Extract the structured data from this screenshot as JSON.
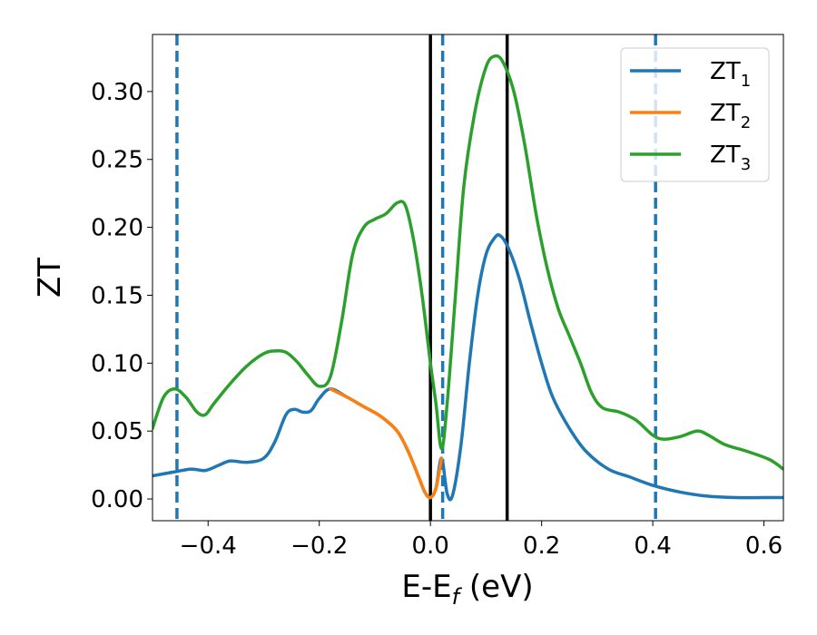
{
  "chart_data": {
    "type": "line",
    "xlabel": {
      "main": "E-E",
      "sub": "f",
      "unit": " (eV)"
    },
    "ylabel": "ZT",
    "xlim": [
      -0.5,
      0.635
    ],
    "ylim": [
      -0.016,
      0.342
    ],
    "xticks": [
      {
        "value": -0.4,
        "label": "−0.4"
      },
      {
        "value": -0.2,
        "label": "−0.2"
      },
      {
        "value": 0.0,
        "label": "0.0"
      },
      {
        "value": 0.2,
        "label": "0.2"
      },
      {
        "value": 0.4,
        "label": "0.4"
      },
      {
        "value": 0.6,
        "label": "0.6"
      }
    ],
    "yticks": [
      {
        "value": 0.0,
        "label": "0.00"
      },
      {
        "value": 0.05,
        "label": "0.05"
      },
      {
        "value": 0.1,
        "label": "0.10"
      },
      {
        "value": 0.15,
        "label": "0.15"
      },
      {
        "value": 0.2,
        "label": "0.20"
      },
      {
        "value": 0.25,
        "label": "0.25"
      },
      {
        "value": 0.3,
        "label": "0.30"
      }
    ],
    "grid": false,
    "legend_position": "top-right",
    "series": [
      {
        "name": "ZT",
        "sub": "1",
        "color": "#1f77b4",
        "points": [
          [
            -0.5,
            0.017
          ],
          [
            -0.46,
            0.02
          ],
          [
            -0.43,
            0.022
          ],
          [
            -0.405,
            0.021
          ],
          [
            -0.38,
            0.025
          ],
          [
            -0.36,
            0.028
          ],
          [
            -0.33,
            0.027
          ],
          [
            -0.3,
            0.03
          ],
          [
            -0.28,
            0.042
          ],
          [
            -0.26,
            0.062
          ],
          [
            -0.245,
            0.066
          ],
          [
            -0.23,
            0.064
          ],
          [
            -0.215,
            0.065
          ],
          [
            -0.2,
            0.074
          ],
          [
            -0.18,
            0.081
          ],
          [
            -0.15,
            0.075
          ],
          [
            -0.12,
            0.068
          ],
          [
            -0.09,
            0.061
          ],
          [
            -0.06,
            0.05
          ],
          [
            -0.04,
            0.035
          ],
          [
            -0.02,
            0.015
          ],
          [
            -0.01,
            0.005
          ],
          [
            0.0,
            0.001
          ],
          [
            0.01,
            0.008
          ],
          [
            0.02,
            0.03
          ],
          [
            0.03,
            0.004
          ],
          [
            0.04,
            0.003
          ],
          [
            0.055,
            0.04
          ],
          [
            0.07,
            0.1
          ],
          [
            0.085,
            0.15
          ],
          [
            0.1,
            0.18
          ],
          [
            0.115,
            0.192
          ],
          [
            0.125,
            0.194
          ],
          [
            0.14,
            0.185
          ],
          [
            0.16,
            0.162
          ],
          [
            0.18,
            0.13
          ],
          [
            0.2,
            0.1
          ],
          [
            0.22,
            0.075
          ],
          [
            0.25,
            0.052
          ],
          [
            0.28,
            0.035
          ],
          [
            0.32,
            0.022
          ],
          [
            0.36,
            0.016
          ],
          [
            0.4,
            0.01
          ],
          [
            0.45,
            0.005
          ],
          [
            0.5,
            0.002
          ],
          [
            0.55,
            0.001
          ],
          [
            0.6,
            0.001
          ],
          [
            0.635,
            0.001
          ]
        ]
      },
      {
        "name": "ZT",
        "sub": "2",
        "color": "#ff7f0e",
        "points": [
          [
            -0.18,
            0.081
          ],
          [
            -0.15,
            0.075
          ],
          [
            -0.12,
            0.068
          ],
          [
            -0.09,
            0.061
          ],
          [
            -0.06,
            0.05
          ],
          [
            -0.04,
            0.035
          ],
          [
            -0.02,
            0.015
          ],
          [
            -0.01,
            0.005
          ],
          [
            0.0,
            0.001
          ],
          [
            0.01,
            0.008
          ],
          [
            0.02,
            0.03
          ]
        ]
      },
      {
        "name": "ZT",
        "sub": "3",
        "color": "#2ca02c",
        "points": [
          [
            -0.5,
            0.052
          ],
          [
            -0.48,
            0.075
          ],
          [
            -0.46,
            0.081
          ],
          [
            -0.44,
            0.075
          ],
          [
            -0.42,
            0.064
          ],
          [
            -0.405,
            0.062
          ],
          [
            -0.39,
            0.07
          ],
          [
            -0.36,
            0.085
          ],
          [
            -0.33,
            0.098
          ],
          [
            -0.3,
            0.107
          ],
          [
            -0.28,
            0.109
          ],
          [
            -0.26,
            0.108
          ],
          [
            -0.24,
            0.101
          ],
          [
            -0.22,
            0.091
          ],
          [
            -0.2,
            0.083
          ],
          [
            -0.18,
            0.09
          ],
          [
            -0.16,
            0.13
          ],
          [
            -0.14,
            0.18
          ],
          [
            -0.12,
            0.2
          ],
          [
            -0.1,
            0.206
          ],
          [
            -0.08,
            0.21
          ],
          [
            -0.06,
            0.218
          ],
          [
            -0.045,
            0.216
          ],
          [
            -0.03,
            0.19
          ],
          [
            -0.015,
            0.15
          ],
          [
            0.0,
            0.1
          ],
          [
            0.01,
            0.07
          ],
          [
            0.02,
            0.037
          ],
          [
            0.03,
            0.07
          ],
          [
            0.045,
            0.15
          ],
          [
            0.06,
            0.23
          ],
          [
            0.08,
            0.285
          ],
          [
            0.1,
            0.318
          ],
          [
            0.115,
            0.326
          ],
          [
            0.13,
            0.322
          ],
          [
            0.15,
            0.3
          ],
          [
            0.17,
            0.26
          ],
          [
            0.19,
            0.21
          ],
          [
            0.21,
            0.17
          ],
          [
            0.23,
            0.14
          ],
          [
            0.25,
            0.12
          ],
          [
            0.27,
            0.1
          ],
          [
            0.29,
            0.078
          ],
          [
            0.31,
            0.067
          ],
          [
            0.34,
            0.064
          ],
          [
            0.37,
            0.058
          ],
          [
            0.4,
            0.047
          ],
          [
            0.42,
            0.044
          ],
          [
            0.45,
            0.046
          ],
          [
            0.48,
            0.05
          ],
          [
            0.5,
            0.047
          ],
          [
            0.53,
            0.04
          ],
          [
            0.57,
            0.035
          ],
          [
            0.61,
            0.029
          ],
          [
            0.635,
            0.022
          ]
        ]
      }
    ],
    "vlines": [
      {
        "x": -0.456,
        "color": "#1f77b4",
        "style": "dashed"
      },
      {
        "x": 0.0,
        "color": "#000000",
        "style": "solid"
      },
      {
        "x": 0.022,
        "color": "#1f77b4",
        "style": "dashed"
      },
      {
        "x": 0.138,
        "color": "#000000",
        "style": "solid"
      },
      {
        "x": 0.405,
        "color": "#1f77b4",
        "style": "dashed"
      }
    ]
  }
}
